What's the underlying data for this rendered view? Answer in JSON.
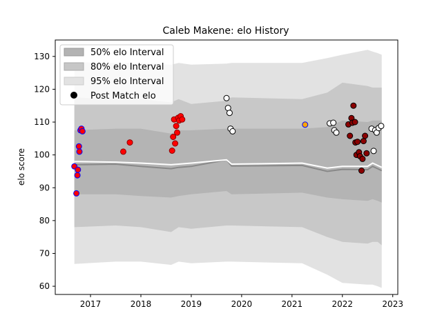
{
  "chart_data": {
    "type": "scatter",
    "title": "Caleb Makene: elo History",
    "xlabel": "",
    "ylabel": "elo score",
    "xlim": [
      2016.3,
      2023.1
    ],
    "ylim": [
      57.5,
      135
    ],
    "x_ticks": [
      2017,
      2018,
      2019,
      2020,
      2021,
      2022,
      2023
    ],
    "y_ticks": [
      60,
      70,
      80,
      90,
      100,
      110,
      120,
      130
    ],
    "legend_position": "top-left",
    "legend": [
      {
        "label": "50% elo Interval",
        "kind": "band",
        "color": "#b3b3b3"
      },
      {
        "label": "80% elo Interval",
        "kind": "band",
        "color": "#c6c6c6"
      },
      {
        "label": "95% elo Interval",
        "kind": "band",
        "color": "#e2e2e2"
      },
      {
        "label": "Post Match elo",
        "kind": "marker",
        "color": "#000000"
      }
    ],
    "colors": {
      "band95": "#e2e2e2",
      "band80": "#c8c8c8",
      "band50": "#b4b4b4",
      "mean_line": "#ffffff",
      "median_line": "#888888"
    },
    "bands": {
      "x": [
        2016.68,
        2017.5,
        2018.0,
        2018.6,
        2018.75,
        2019.0,
        2019.7,
        2019.8,
        2021.2,
        2021.7,
        2022.0,
        2022.5,
        2022.6,
        2022.7,
        2022.78
      ],
      "hi95": [
        128.3,
        128.0,
        128.0,
        127.5,
        128.0,
        127.5,
        127.8,
        128.0,
        128.0,
        129.5,
        130.5,
        132.0,
        131.5,
        131.0,
        130.5
      ],
      "hi80": [
        117.5,
        117.0,
        117.0,
        116.0,
        117.0,
        115.5,
        116.5,
        117.5,
        117.0,
        119.0,
        122.0,
        121.0,
        120.5,
        120.5,
        120.5
      ],
      "hi50": [
        107.5,
        108.0,
        108.0,
        106.5,
        107.5,
        107.5,
        108.0,
        108.0,
        108.0,
        108.5,
        110.5,
        110.0,
        110.5,
        110.5,
        110.5
      ],
      "lo50": [
        88.0,
        88.0,
        87.5,
        87.0,
        87.5,
        88.0,
        89.0,
        88.0,
        88.5,
        87.0,
        86.5,
        86.0,
        86.5,
        86.0,
        85.5
      ],
      "lo80": [
        78.0,
        78.5,
        78.0,
        76.5,
        78.0,
        77.5,
        78.5,
        78.5,
        78.0,
        75.0,
        73.5,
        73.0,
        73.5,
        73.5,
        72.5
      ],
      "lo95": [
        66.8,
        67.5,
        67.5,
        66.5,
        67.5,
        67.0,
        67.5,
        67.5,
        67.0,
        63.5,
        61.0,
        60.5,
        60.5,
        60.0,
        59.5
      ],
      "mean": [
        98.0,
        97.8,
        97.5,
        97.0,
        97.2,
        97.5,
        98.5,
        97.2,
        97.5,
        96.0,
        96.5,
        96.5,
        97.5,
        96.8,
        96.2
      ],
      "median": [
        97.0,
        97.2,
        96.5,
        95.8,
        96.2,
        96.5,
        98.5,
        96.6,
        96.8,
        95.0,
        95.6,
        95.5,
        96.5,
        95.8,
        95.2
      ]
    },
    "series": [
      {
        "face": "#ff0000",
        "edge": "#0000ff",
        "points": [
          [
            2016.68,
            96.5
          ],
          [
            2016.72,
            88.3
          ],
          [
            2016.74,
            93.8
          ],
          [
            2016.75,
            95.5
          ],
          [
            2016.77,
            102.6
          ],
          [
            2016.78,
            101.0
          ],
          [
            2016.8,
            107.5
          ],
          [
            2016.82,
            108.0
          ],
          [
            2016.84,
            107.2
          ]
        ]
      },
      {
        "face": "#ff0000",
        "edge": "#8b0000",
        "points": [
          [
            2017.65,
            101.0
          ],
          [
            2017.78,
            103.8
          ],
          [
            2018.62,
            101.3
          ],
          [
            2018.64,
            105.5
          ],
          [
            2018.66,
            110.8
          ],
          [
            2018.68,
            103.5
          ],
          [
            2018.7,
            108.8
          ],
          [
            2018.72,
            106.8
          ],
          [
            2018.74,
            111.3
          ],
          [
            2018.76,
            110.5
          ],
          [
            2018.79,
            111.8
          ],
          [
            2018.82,
            110.8
          ]
        ]
      },
      {
        "face": "#ffffff",
        "edge": "#000000",
        "points": [
          [
            2019.7,
            117.3
          ],
          [
            2019.73,
            114.3
          ],
          [
            2019.76,
            112.8
          ],
          [
            2019.78,
            108.0
          ],
          [
            2019.82,
            107.2
          ]
        ]
      },
      {
        "face": "#ffa500",
        "edge": "#0000ff",
        "points": [
          [
            2021.26,
            109.2
          ]
        ]
      },
      {
        "face": "#ffffff",
        "edge": "#000000",
        "points": [
          [
            2021.75,
            109.6
          ],
          [
            2021.82,
            109.8
          ],
          [
            2021.84,
            107.5
          ],
          [
            2021.88,
            106.8
          ],
          [
            2022.58,
            108.0
          ],
          [
            2022.62,
            101.2
          ],
          [
            2022.65,
            107.5
          ],
          [
            2022.68,
            106.8
          ],
          [
            2022.72,
            108.2
          ],
          [
            2022.77,
            108.8
          ]
        ]
      },
      {
        "face": "#8b0000",
        "edge": "#000000",
        "points": [
          [
            2022.12,
            109.3
          ],
          [
            2022.15,
            105.8
          ],
          [
            2022.18,
            111.2
          ],
          [
            2022.2,
            109.8
          ],
          [
            2022.22,
            115.0
          ],
          [
            2022.25,
            110.0
          ],
          [
            2022.26,
            103.8
          ],
          [
            2022.28,
            100.0
          ],
          [
            2022.3,
            104.0
          ],
          [
            2022.33,
            100.8
          ],
          [
            2022.35,
            99.6
          ],
          [
            2022.38,
            95.2
          ],
          [
            2022.4,
            98.8
          ],
          [
            2022.42,
            104.2
          ],
          [
            2022.45,
            105.8
          ],
          [
            2022.48,
            100.5
          ]
        ]
      }
    ]
  }
}
